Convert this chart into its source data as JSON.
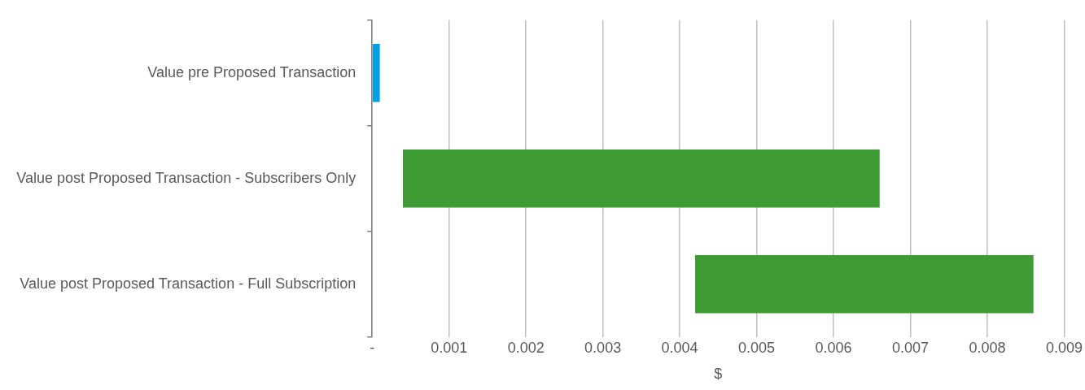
{
  "chart_data": {
    "type": "bar",
    "orientation": "horizontal",
    "xlabel": "$",
    "categories": [
      "Value pre Proposed Transaction",
      "Value post Proposed Transaction - Subscribers Only",
      "Value post Proposed Transaction - Full Subscription"
    ],
    "values": [
      0.0001,
      0.0062,
      0.0044
    ],
    "base": [
      0,
      0.0004,
      0.0042
    ],
    "colors": [
      "#00a0e3",
      "#3f9c35",
      "#3f9c35"
    ],
    "xlim": [
      0,
      0.009
    ],
    "xticks": [
      {
        "value": 0,
        "label": "-"
      },
      0.001,
      0.002,
      0.003,
      0.004,
      0.005,
      0.006,
      0.007,
      0.008,
      0.009
    ],
    "grid": "x",
    "legend": false
  }
}
